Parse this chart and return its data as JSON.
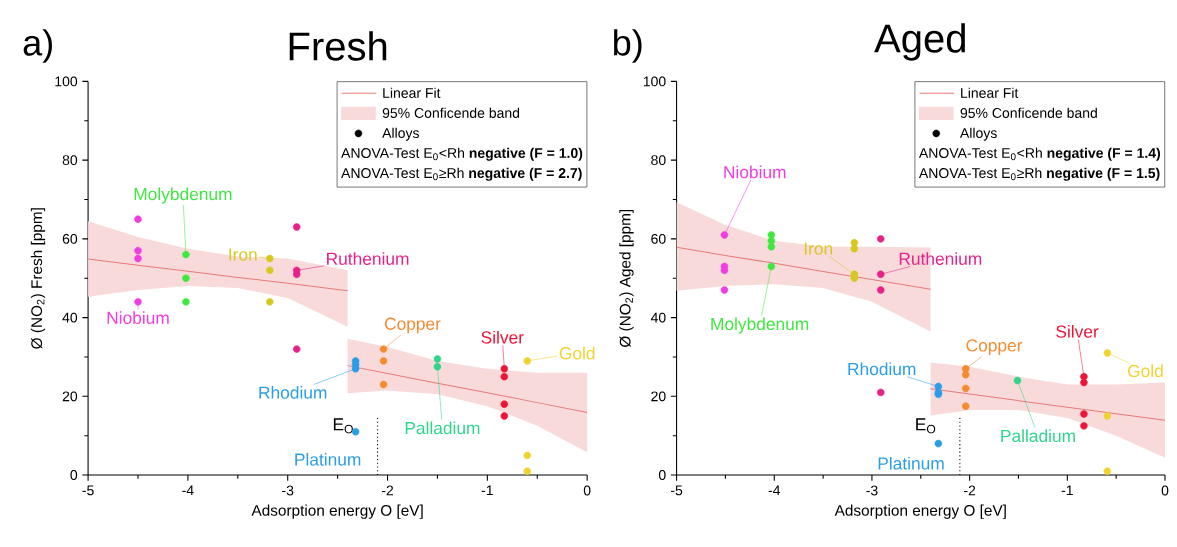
{
  "chart_data": [
    {
      "type": "scatter",
      "title": "Fresh",
      "xlabel": "Adsorption energy O [eV]",
      "ylabel": "Ø (NO$_{2}$) Fresh [ppm]",
      "xlim": [
        -5,
        0
      ],
      "ylim": [
        0,
        100
      ],
      "xticks": [
        -5,
        -4,
        -3,
        -2,
        -1,
        0
      ],
      "yticks": [
        0,
        20,
        40,
        60,
        80,
        100
      ],
      "marker": "circle",
      "legend": "top right",
      "series": [
        {
          "type": "line",
          "name": "Linear Fit",
          "color": "#e87a7a",
          "line_style": "solid",
          "marker": "none",
          "x": [
            -5,
            -4.5,
            -4,
            -3.5,
            -3,
            -2.4
          ],
          "values": [
            54.9,
            53.3,
            51.8,
            50.2,
            48.7,
            46.8
          ],
          "lower": [
            45.3,
            47,
            48,
            47.5,
            45,
            37.7
          ],
          "upper": [
            64.5,
            60.5,
            57.5,
            55.5,
            55,
            52
          ]
        },
        {
          "type": "line",
          "color": "#e87a7a",
          "line_style": "solid",
          "marker": "none",
          "x": [
            -2.4,
            -2,
            -1.5,
            -1,
            -0.5,
            0
          ],
          "values": [
            27.8,
            25.8,
            23.3,
            20.9,
            18.4,
            15.9
          ],
          "lower": [
            20.8,
            21.5,
            20.5,
            17.5,
            12.5,
            5.8
          ],
          "upper": [
            34.6,
            32.5,
            29,
            27,
            26,
            26
          ]
        },
        {
          "name": "Niobium",
          "color": "#f03ce0",
          "x": [
            -4.5,
            -4.5,
            -4.5,
            -4.5
          ],
          "values": [
            65,
            57,
            55,
            44
          ]
        },
        {
          "name": "Molybdenum",
          "color": "#3ee83e",
          "x": [
            -4.02,
            -4.02,
            -4.02
          ],
          "values": [
            56,
            50,
            44
          ]
        },
        {
          "name": "Iron",
          "color": "#d6c81e",
          "x": [
            -3.18,
            -3.18,
            -3.18
          ],
          "values": [
            55,
            52,
            44
          ]
        },
        {
          "name": "Ruthenium",
          "color": "#e8208a",
          "x": [
            -2.91,
            -2.91,
            -2.91,
            -2.91
          ],
          "values": [
            63,
            52,
            51,
            32
          ]
        },
        {
          "name": "Rhodium",
          "color": "#2a9de8",
          "x": [
            -2.32,
            -2.32,
            -2.32
          ],
          "values": [
            29,
            28,
            27
          ]
        },
        {
          "name": "Platinum",
          "color": "#2a9de8",
          "x": [
            -2.32
          ],
          "values": [
            11
          ]
        },
        {
          "name": "Copper",
          "color": "#f58a2e",
          "x": [
            -2.04,
            -2.04,
            -2.04
          ],
          "values": [
            32,
            29,
            23
          ]
        },
        {
          "name": "Palladium",
          "color": "#2ed68a",
          "x": [
            -1.5,
            -1.5
          ],
          "values": [
            29.5,
            27.5
          ]
        },
        {
          "name": "Silver",
          "color": "#ee1438",
          "x": [
            -0.83,
            -0.83,
            -0.83,
            -0.83
          ],
          "values": [
            27,
            25,
            18,
            15
          ]
        },
        {
          "name": "Gold",
          "color": "#f2d22e",
          "x": [
            -0.6,
            -0.6,
            -0.6
          ],
          "values": [
            29,
            5,
            1
          ]
        }
      ],
      "ref_lines": [
        {
          "axis": "x",
          "value": -2.1,
          "label": "E$_{O}$",
          "line_style": "dotted"
        }
      ],
      "annotations": [
        "a)",
        "95% Conficende band",
        "Alloys",
        "ANOVA-Test E$_{0}$<Rh **negative (F = 1.0)**",
        "ANOVA-Test E$_{0}$≥Rh **negative (F = 2.7)**"
      ]
    },
    {
      "type": "scatter",
      "title": "Aged",
      "xlabel": "Adsorption energy O [eV]",
      "ylabel": "Ø (NO$_{2}$) Aged [ppm]",
      "xlim": [
        -5,
        0
      ],
      "ylim": [
        0,
        100
      ],
      "xticks": [
        -5,
        -4,
        -3,
        -2,
        -1,
        0
      ],
      "yticks": [
        0,
        20,
        40,
        60,
        80,
        100
      ],
      "marker": "circle",
      "legend": "top right",
      "series": [
        {
          "type": "line",
          "name": "Linear Fit",
          "color": "#e87a7a",
          "line_style": "solid",
          "marker": "none",
          "x": [
            -5,
            -4.5,
            -4,
            -3.5,
            -3,
            -2.4
          ],
          "values": [
            57.9,
            55.8,
            53.8,
            51.7,
            49.7,
            47.2
          ],
          "lower": [
            46.8,
            48,
            48.5,
            47.5,
            44,
            36.5
          ],
          "upper": [
            69.3,
            63.5,
            59.5,
            58,
            58,
            57.8
          ]
        },
        {
          "type": "line",
          "color": "#e87a7a",
          "line_style": "solid",
          "marker": "none",
          "x": [
            -2.4,
            -2,
            -1.5,
            -1,
            -0.5,
            0
          ],
          "values": [
            21.9,
            20.6,
            18.9,
            17.2,
            15.6,
            13.9
          ],
          "lower": [
            15.1,
            16.5,
            16.5,
            14.5,
            10,
            4.4
          ],
          "upper": [
            28.6,
            27.5,
            25,
            23,
            23,
            23.5
          ]
        },
        {
          "name": "Niobium",
          "color": "#f03ce0",
          "x": [
            -4.51,
            -4.51,
            -4.51,
            -4.51
          ],
          "values": [
            61,
            53,
            52,
            47
          ]
        },
        {
          "name": "Molybdenum",
          "color": "#3ee83e",
          "x": [
            -4.03,
            -4.03,
            -4.03,
            -4.03
          ],
          "values": [
            61,
            59.5,
            58,
            53
          ]
        },
        {
          "name": "Iron",
          "color": "#d6c81e",
          "x": [
            -3.18,
            -3.18,
            -3.18,
            -3.18
          ],
          "values": [
            59,
            57.5,
            51,
            50
          ]
        },
        {
          "name": "Ruthenium",
          "color": "#e8208a",
          "x": [
            -2.91,
            -2.91,
            -2.91,
            -2.91
          ],
          "values": [
            60,
            51,
            47,
            21
          ]
        },
        {
          "name": "Rhodium",
          "color": "#2a9de8",
          "x": [
            -2.32,
            -2.32,
            -2.32
          ],
          "values": [
            22.5,
            21,
            20.5
          ]
        },
        {
          "name": "Platinum",
          "color": "#2a9de8",
          "x": [
            -2.32
          ],
          "values": [
            8
          ]
        },
        {
          "name": "Copper",
          "color": "#f58a2e",
          "x": [
            -2.04,
            -2.04,
            -2.04,
            -2.04
          ],
          "values": [
            27,
            25.5,
            22,
            17.5
          ]
        },
        {
          "name": "Palladium",
          "color": "#2ed68a",
          "x": [
            -1.51
          ],
          "values": [
            24
          ]
        },
        {
          "name": "Silver",
          "color": "#ee1438",
          "x": [
            -0.83,
            -0.83,
            -0.83,
            -0.83
          ],
          "values": [
            25,
            23.5,
            15.5,
            12.5
          ]
        },
        {
          "name": "Gold",
          "color": "#f2d22e",
          "x": [
            -0.59,
            -0.59,
            -0.59
          ],
          "values": [
            31,
            15,
            1
          ]
        }
      ],
      "ref_lines": [
        {
          "axis": "x",
          "value": -2.1,
          "label": "E$_{O}$",
          "line_style": "dotted"
        }
      ],
      "annotations": [
        "b)",
        "95% Conficende band",
        "Alloys",
        "ANOVA-Test E$_{0}$<Rh **negative (F = 1.4)**",
        "ANOVA-Test E$_{0}$≥Rh **negative (F = 1.5)**"
      ]
    }
  ]
}
